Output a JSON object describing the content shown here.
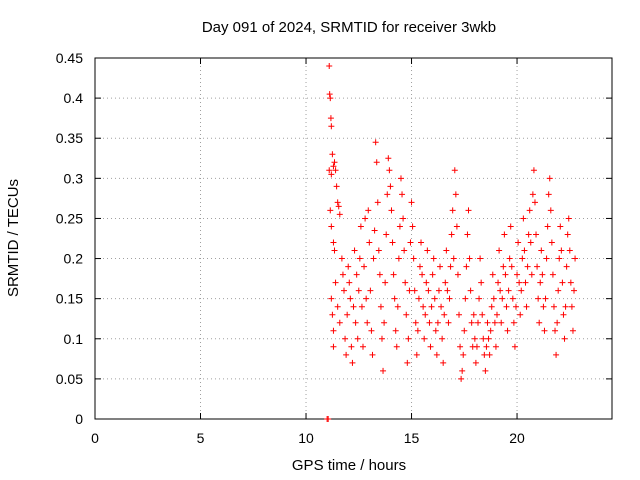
{
  "chart_data": {
    "type": "scatter",
    "title": "Day 091 of 2024, SRMTID for receiver 3wkb",
    "xlabel": "GPS time / hours",
    "ylabel": "SRMTID / TECUs",
    "xlim": [
      0,
      24.5
    ],
    "ylim": [
      0,
      0.45
    ],
    "x_ticks": [
      0,
      5,
      10,
      15,
      20
    ],
    "x_tick_labels": [
      "0",
      "5",
      "10",
      "15",
      "20"
    ],
    "y_ticks": [
      0,
      0.05,
      0.1,
      0.15,
      0.2,
      0.25,
      0.3,
      0.35,
      0.4,
      0.45
    ],
    "y_tick_labels": [
      "0",
      "0.05",
      "0.1",
      "0.15",
      "0.2",
      "0.25",
      "0.3",
      "0.35",
      "0.4",
      "0.45"
    ],
    "grid": true,
    "marker": "+",
    "point_color": "#ff0000",
    "series": [
      {
        "name": "SRMTID",
        "points": [
          [
            11.0,
            0.0
          ],
          [
            11.05,
            0.0
          ],
          [
            11.1,
            0.44
          ],
          [
            11.12,
            0.405
          ],
          [
            11.15,
            0.4
          ],
          [
            11.18,
            0.375
          ],
          [
            11.2,
            0.365
          ],
          [
            11.1,
            0.31
          ],
          [
            11.2,
            0.305
          ],
          [
            11.25,
            0.33
          ],
          [
            11.3,
            0.315
          ],
          [
            11.35,
            0.32
          ],
          [
            11.4,
            0.31
          ],
          [
            11.45,
            0.29
          ],
          [
            11.15,
            0.26
          ],
          [
            11.2,
            0.24
          ],
          [
            11.3,
            0.22
          ],
          [
            11.35,
            0.21
          ],
          [
            11.5,
            0.27
          ],
          [
            11.55,
            0.265
          ],
          [
            11.6,
            0.255
          ],
          [
            11.2,
            0.15
          ],
          [
            11.25,
            0.13
          ],
          [
            11.3,
            0.11
          ],
          [
            11.3,
            0.09
          ],
          [
            11.4,
            0.17
          ],
          [
            11.5,
            0.14
          ],
          [
            11.6,
            0.12
          ],
          [
            11.7,
            0.2
          ],
          [
            11.75,
            0.18
          ],
          [
            11.8,
            0.16
          ],
          [
            11.85,
            0.1
          ],
          [
            11.9,
            0.08
          ],
          [
            11.95,
            0.13
          ],
          [
            12.0,
            0.19
          ],
          [
            12.05,
            0.17
          ],
          [
            12.1,
            0.15
          ],
          [
            12.15,
            0.09
          ],
          [
            12.2,
            0.07
          ],
          [
            12.25,
            0.14
          ],
          [
            12.3,
            0.21
          ],
          [
            12.35,
            0.12
          ],
          [
            12.4,
            0.18
          ],
          [
            12.45,
            0.1
          ],
          [
            12.5,
            0.16
          ],
          [
            12.55,
            0.2
          ],
          [
            12.6,
            0.24
          ],
          [
            12.65,
            0.14
          ],
          [
            12.7,
            0.09
          ],
          [
            12.75,
            0.19
          ],
          [
            12.8,
            0.25
          ],
          [
            12.85,
            0.15
          ],
          [
            12.9,
            0.12
          ],
          [
            12.95,
            0.26
          ],
          [
            13.0,
            0.22
          ],
          [
            13.05,
            0.16
          ],
          [
            13.1,
            0.11
          ],
          [
            13.15,
            0.08
          ],
          [
            13.2,
            0.2
          ],
          [
            13.25,
            0.235
          ],
          [
            13.3,
            0.345
          ],
          [
            13.35,
            0.32
          ],
          [
            13.4,
            0.27
          ],
          [
            13.45,
            0.21
          ],
          [
            13.5,
            0.18
          ],
          [
            13.55,
            0.14
          ],
          [
            13.6,
            0.1
          ],
          [
            13.65,
            0.06
          ],
          [
            13.7,
            0.12
          ],
          [
            13.75,
            0.17
          ],
          [
            13.8,
            0.23
          ],
          [
            13.85,
            0.28
          ],
          [
            13.9,
            0.325
          ],
          [
            13.95,
            0.31
          ],
          [
            14.0,
            0.29
          ],
          [
            14.05,
            0.26
          ],
          [
            14.1,
            0.22
          ],
          [
            14.15,
            0.18
          ],
          [
            14.2,
            0.15
          ],
          [
            14.25,
            0.11
          ],
          [
            14.3,
            0.09
          ],
          [
            14.35,
            0.14
          ],
          [
            14.4,
            0.2
          ],
          [
            14.45,
            0.24
          ],
          [
            14.5,
            0.3
          ],
          [
            14.55,
            0.28
          ],
          [
            14.6,
            0.25
          ],
          [
            14.65,
            0.21
          ],
          [
            14.7,
            0.17
          ],
          [
            14.75,
            0.13
          ],
          [
            14.8,
            0.07
          ],
          [
            14.85,
            0.1
          ],
          [
            14.9,
            0.16
          ],
          [
            14.95,
            0.22
          ],
          [
            15.0,
            0.27
          ],
          [
            15.05,
            0.24
          ],
          [
            15.1,
            0.2
          ],
          [
            15.15,
            0.16
          ],
          [
            15.2,
            0.12
          ],
          [
            15.25,
            0.08
          ],
          [
            15.3,
            0.11
          ],
          [
            15.35,
            0.15
          ],
          [
            15.4,
            0.19
          ],
          [
            15.45,
            0.22
          ],
          [
            15.5,
            0.18
          ],
          [
            15.55,
            0.14
          ],
          [
            15.6,
            0.1
          ],
          [
            15.65,
            0.13
          ],
          [
            15.7,
            0.17
          ],
          [
            15.75,
            0.21
          ],
          [
            15.8,
            0.16
          ],
          [
            15.85,
            0.12
          ],
          [
            15.9,
            0.09
          ],
          [
            15.95,
            0.14
          ],
          [
            16.0,
            0.18
          ],
          [
            16.05,
            0.2
          ],
          [
            16.1,
            0.15
          ],
          [
            16.15,
            0.11
          ],
          [
            16.2,
            0.08
          ],
          [
            16.25,
            0.12
          ],
          [
            16.3,
            0.16
          ],
          [
            16.35,
            0.19
          ],
          [
            16.4,
            0.14
          ],
          [
            16.45,
            0.1
          ],
          [
            16.5,
            0.07
          ],
          [
            16.55,
            0.13
          ],
          [
            16.6,
            0.17
          ],
          [
            16.65,
            0.21
          ],
          [
            16.7,
            0.16
          ],
          [
            16.75,
            0.12
          ],
          [
            16.8,
            0.15
          ],
          [
            16.85,
            0.19
          ],
          [
            16.9,
            0.23
          ],
          [
            16.95,
            0.26
          ],
          [
            17.0,
            0.2
          ],
          [
            17.05,
            0.31
          ],
          [
            17.1,
            0.28
          ],
          [
            17.15,
            0.24
          ],
          [
            17.2,
            0.18
          ],
          [
            17.25,
            0.13
          ],
          [
            17.3,
            0.09
          ],
          [
            17.35,
            0.05
          ],
          [
            17.4,
            0.06
          ],
          [
            17.45,
            0.08
          ],
          [
            17.5,
            0.11
          ],
          [
            17.55,
            0.15
          ],
          [
            17.6,
            0.19
          ],
          [
            17.65,
            0.23
          ],
          [
            17.7,
            0.26
          ],
          [
            17.75,
            0.2
          ],
          [
            17.8,
            0.16
          ],
          [
            17.85,
            0.12
          ],
          [
            17.9,
            0.09
          ],
          [
            17.95,
            0.13
          ],
          [
            18.0,
            0.1
          ],
          [
            18.05,
            0.07
          ],
          [
            18.1,
            0.09
          ],
          [
            18.15,
            0.12
          ],
          [
            18.2,
            0.15
          ],
          [
            18.25,
            0.2
          ],
          [
            18.3,
            0.17
          ],
          [
            18.35,
            0.13
          ],
          [
            18.4,
            0.1
          ],
          [
            18.45,
            0.08
          ],
          [
            18.5,
            0.06
          ],
          [
            18.55,
            0.09
          ],
          [
            18.6,
            0.12
          ],
          [
            18.65,
            0.1
          ],
          [
            18.7,
            0.08
          ],
          [
            18.75,
            0.11
          ],
          [
            18.8,
            0.14
          ],
          [
            18.85,
            0.18
          ],
          [
            18.9,
            0.15
          ],
          [
            18.95,
            0.12
          ],
          [
            19.0,
            0.09
          ],
          [
            19.05,
            0.13
          ],
          [
            19.1,
            0.17
          ],
          [
            19.15,
            0.21
          ],
          [
            19.2,
            0.16
          ],
          [
            19.25,
            0.12
          ],
          [
            19.3,
            0.15
          ],
          [
            19.35,
            0.19
          ],
          [
            19.4,
            0.23
          ],
          [
            19.45,
            0.18
          ],
          [
            19.5,
            0.14
          ],
          [
            19.55,
            0.11
          ],
          [
            19.6,
            0.16
          ],
          [
            19.65,
            0.2
          ],
          [
            19.7,
            0.24
          ],
          [
            19.75,
            0.19
          ],
          [
            19.8,
            0.15
          ],
          [
            19.85,
            0.12
          ],
          [
            19.9,
            0.09
          ],
          [
            19.95,
            0.14
          ],
          [
            20.0,
            0.18
          ],
          [
            20.05,
            0.22
          ],
          [
            20.1,
            0.17
          ],
          [
            20.15,
            0.13
          ],
          [
            20.2,
            0.16
          ],
          [
            20.25,
            0.2
          ],
          [
            20.3,
            0.25
          ],
          [
            20.35,
            0.21
          ],
          [
            20.4,
            0.17
          ],
          [
            20.45,
            0.14
          ],
          [
            20.5,
            0.19
          ],
          [
            20.55,
            0.23
          ],
          [
            20.6,
            0.26
          ],
          [
            20.65,
            0.22
          ],
          [
            20.7,
            0.18
          ],
          [
            20.75,
            0.28
          ],
          [
            20.8,
            0.31
          ],
          [
            20.85,
            0.27
          ],
          [
            20.9,
            0.23
          ],
          [
            20.95,
            0.19
          ],
          [
            21.0,
            0.15
          ],
          [
            21.05,
            0.12
          ],
          [
            21.1,
            0.17
          ],
          [
            21.15,
            0.21
          ],
          [
            21.2,
            0.18
          ],
          [
            21.25,
            0.14
          ],
          [
            21.3,
            0.11
          ],
          [
            21.35,
            0.15
          ],
          [
            21.4,
            0.2
          ],
          [
            21.45,
            0.24
          ],
          [
            21.5,
            0.28
          ],
          [
            21.55,
            0.3
          ],
          [
            21.6,
            0.26
          ],
          [
            21.65,
            0.22
          ],
          [
            21.7,
            0.18
          ],
          [
            21.75,
            0.14
          ],
          [
            21.8,
            0.11
          ],
          [
            21.85,
            0.08
          ],
          [
            21.9,
            0.12
          ],
          [
            21.95,
            0.16
          ],
          [
            22.0,
            0.2
          ],
          [
            22.05,
            0.24
          ],
          [
            22.1,
            0.21
          ],
          [
            22.15,
            0.17
          ],
          [
            22.2,
            0.13
          ],
          [
            22.25,
            0.1
          ],
          [
            22.3,
            0.14
          ],
          [
            22.35,
            0.19
          ],
          [
            22.4,
            0.23
          ],
          [
            22.45,
            0.25
          ],
          [
            22.5,
            0.21
          ],
          [
            22.55,
            0.17
          ],
          [
            22.6,
            0.14
          ],
          [
            22.65,
            0.11
          ],
          [
            22.7,
            0.16
          ],
          [
            22.75,
            0.2
          ]
        ]
      }
    ]
  }
}
